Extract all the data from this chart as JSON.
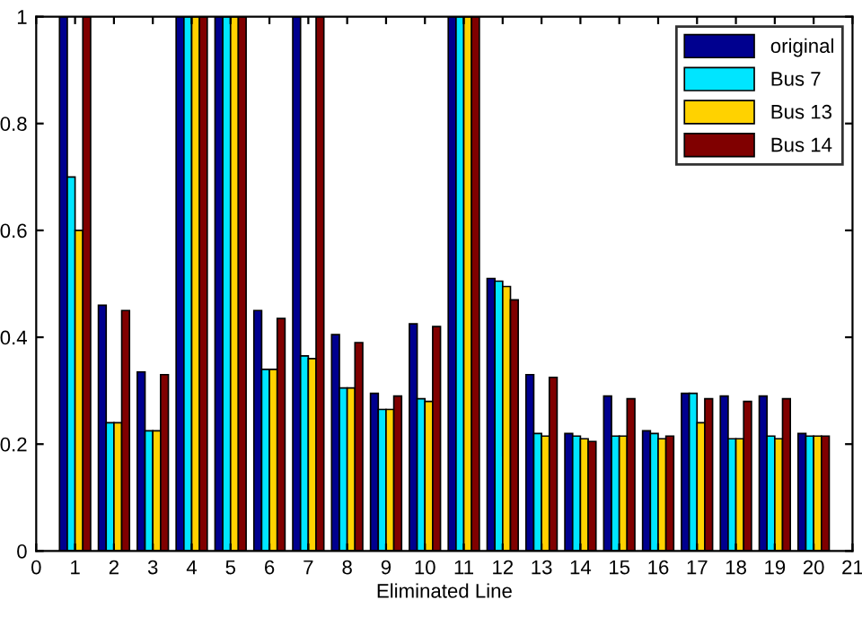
{
  "chart_data": {
    "type": "bar",
    "xlabel": "Eliminated Line",
    "x": [
      1,
      2,
      3,
      4,
      5,
      6,
      7,
      8,
      9,
      10,
      11,
      12,
      13,
      14,
      15,
      16,
      17,
      18,
      19,
      20
    ],
    "series": [
      {
        "name": "original",
        "color": "#00008f",
        "values": [
          1,
          0.46,
          0.335,
          1,
          1,
          0.45,
          1,
          0.405,
          0.295,
          0.425,
          1,
          0.51,
          0.33,
          0.22,
          0.29,
          0.225,
          0.295,
          0.29,
          0.29,
          0.22
        ]
      },
      {
        "name": "Bus 7",
        "color": "#00e5ff",
        "values": [
          0.7,
          0.24,
          0.225,
          1,
          1,
          0.34,
          0.365,
          0.305,
          0.265,
          0.285,
          1,
          0.505,
          0.22,
          0.215,
          0.215,
          0.22,
          0.295,
          0.21,
          0.215,
          0.215
        ]
      },
      {
        "name": "Bus 13",
        "color": "#ffd200",
        "values": [
          0.6,
          0.24,
          0.225,
          1,
          1,
          0.34,
          0.36,
          0.305,
          0.265,
          0.28,
          1,
          0.495,
          0.215,
          0.21,
          0.215,
          0.21,
          0.24,
          0.21,
          0.21,
          0.215
        ]
      },
      {
        "name": "Bus 14",
        "color": "#800000",
        "values": [
          1,
          0.45,
          0.33,
          1,
          1,
          0.435,
          1,
          0.39,
          0.29,
          0.42,
          1,
          0.47,
          0.325,
          0.205,
          0.285,
          0.215,
          0.285,
          0.28,
          0.285,
          0.215
        ]
      }
    ],
    "xlim": [
      0,
      21
    ],
    "xticks": [
      0,
      1,
      2,
      3,
      4,
      5,
      6,
      7,
      8,
      9,
      10,
      11,
      12,
      13,
      14,
      15,
      16,
      17,
      18,
      19,
      20,
      21
    ],
    "ylim": [
      0,
      1
    ],
    "yticks": [
      0,
      0.2,
      0.4,
      0.6,
      0.8,
      1
    ],
    "legend": "top right",
    "grid": false
  }
}
